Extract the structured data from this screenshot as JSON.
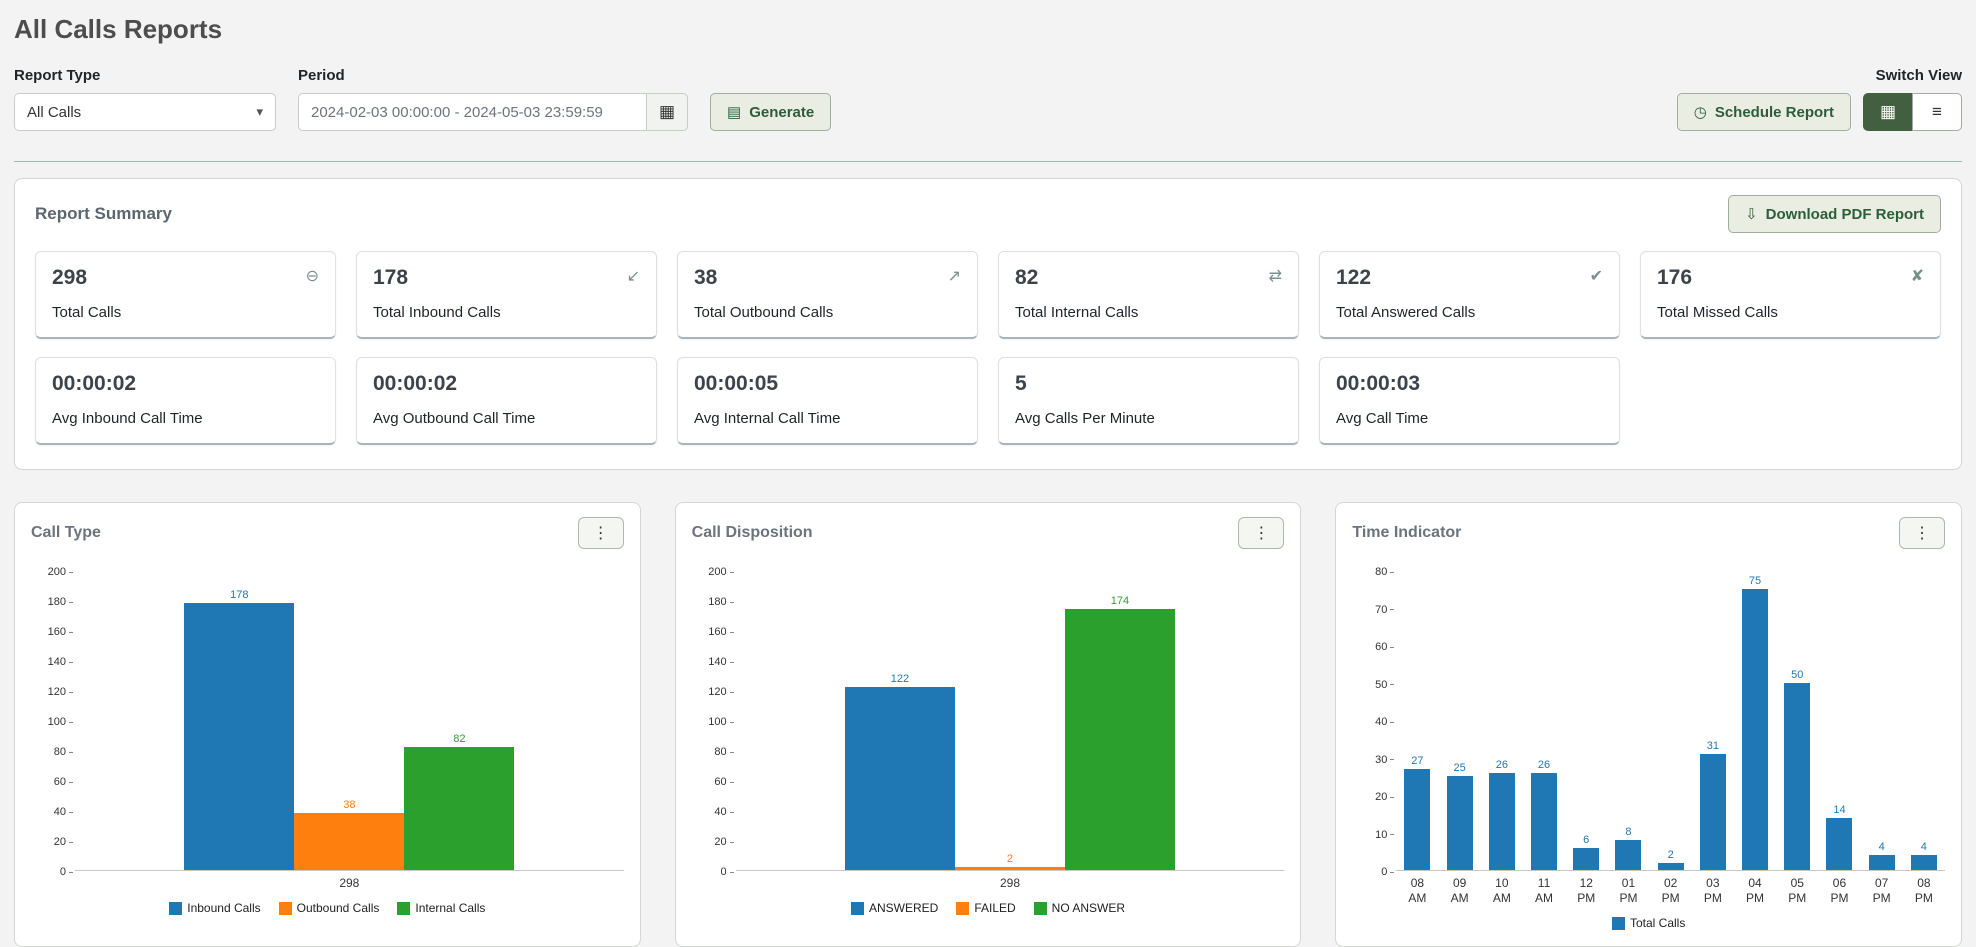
{
  "page": {
    "title": "All Calls Reports"
  },
  "icons": {
    "chevron_down": "▾",
    "calendar": "▦",
    "generate": "▤",
    "clock": "◷",
    "download": "⇩",
    "grid_view": "▦",
    "list_view": "≡",
    "kebab": "⋮"
  },
  "filters": {
    "report_type_label": "Report Type",
    "report_type_value": "All Calls",
    "period_label": "Period",
    "period_value": "2024-02-03 00:00:00 - 2024-05-03 23:59:59",
    "generate_label": "Generate",
    "switch_view_label": "Switch View",
    "schedule_report_label": "Schedule Report"
  },
  "summary": {
    "title": "Report Summary",
    "download_label": "Download PDF Report",
    "cards": [
      {
        "value": "298",
        "label": "Total Calls",
        "icon": "total-calls-icon",
        "glyph": "⊖"
      },
      {
        "value": "178",
        "label": "Total Inbound Calls",
        "icon": "inbound-call-icon",
        "glyph": "↙"
      },
      {
        "value": "38",
        "label": "Total Outbound Calls",
        "icon": "outbound-call-icon",
        "glyph": "↗"
      },
      {
        "value": "82",
        "label": "Total Internal Calls",
        "icon": "internal-call-icon",
        "glyph": "⇄"
      },
      {
        "value": "122",
        "label": "Total Answered Calls",
        "icon": "answered-call-icon",
        "glyph": "✔"
      },
      {
        "value": "176",
        "label": "Total Missed Calls",
        "icon": "missed-call-icon",
        "glyph": "✘"
      },
      {
        "value": "00:00:02",
        "label": "Avg Inbound Call Time"
      },
      {
        "value": "00:00:02",
        "label": "Avg Outbound Call Time"
      },
      {
        "value": "00:00:05",
        "label": "Avg Internal Call Time"
      },
      {
        "value": "5",
        "label": "Avg Calls Per Minute"
      },
      {
        "value": "00:00:03",
        "label": "Avg Call Time"
      }
    ]
  },
  "chart_data": [
    {
      "type": "bar",
      "title": "Call Type",
      "categories": [
        "298"
      ],
      "series": [
        {
          "name": "Inbound Calls",
          "color": "#1f77b4",
          "values": [
            178
          ]
        },
        {
          "name": "Outbound Calls",
          "color": "#ff7f0e",
          "values": [
            38
          ]
        },
        {
          "name": "Internal Calls",
          "color": "#2ca02c",
          "values": [
            82
          ]
        }
      ],
      "ylim": [
        0,
        200
      ],
      "ystep": 20,
      "legend_position": "bottom",
      "grid": false
    },
    {
      "type": "bar",
      "title": "Call Disposition",
      "categories": [
        "298"
      ],
      "series": [
        {
          "name": "ANSWERED",
          "color": "#1f77b4",
          "values": [
            122
          ]
        },
        {
          "name": "FAILED",
          "color": "#ff7f0e",
          "values": [
            2
          ]
        },
        {
          "name": "NO ANSWER",
          "color": "#2ca02c",
          "values": [
            174
          ]
        }
      ],
      "ylim": [
        0,
        200
      ],
      "ystep": 20,
      "legend_position": "bottom",
      "grid": false
    },
    {
      "type": "bar",
      "title": "Time Indicator",
      "categories": [
        "08 AM",
        "09 AM",
        "10 AM",
        "11 AM",
        "12 PM",
        "01 PM",
        "02 PM",
        "03 PM",
        "04 PM",
        "05 PM",
        "06 PM",
        "07 PM",
        "08 PM"
      ],
      "series": [
        {
          "name": "Total Calls",
          "color": "#1f77b4",
          "values": [
            27,
            25,
            26,
            26,
            6,
            8,
            2,
            31,
            75,
            50,
            14,
            4,
            4
          ]
        }
      ],
      "ylim": [
        0,
        80
      ],
      "ystep": 10,
      "legend_position": "bottom",
      "grid": false
    }
  ]
}
